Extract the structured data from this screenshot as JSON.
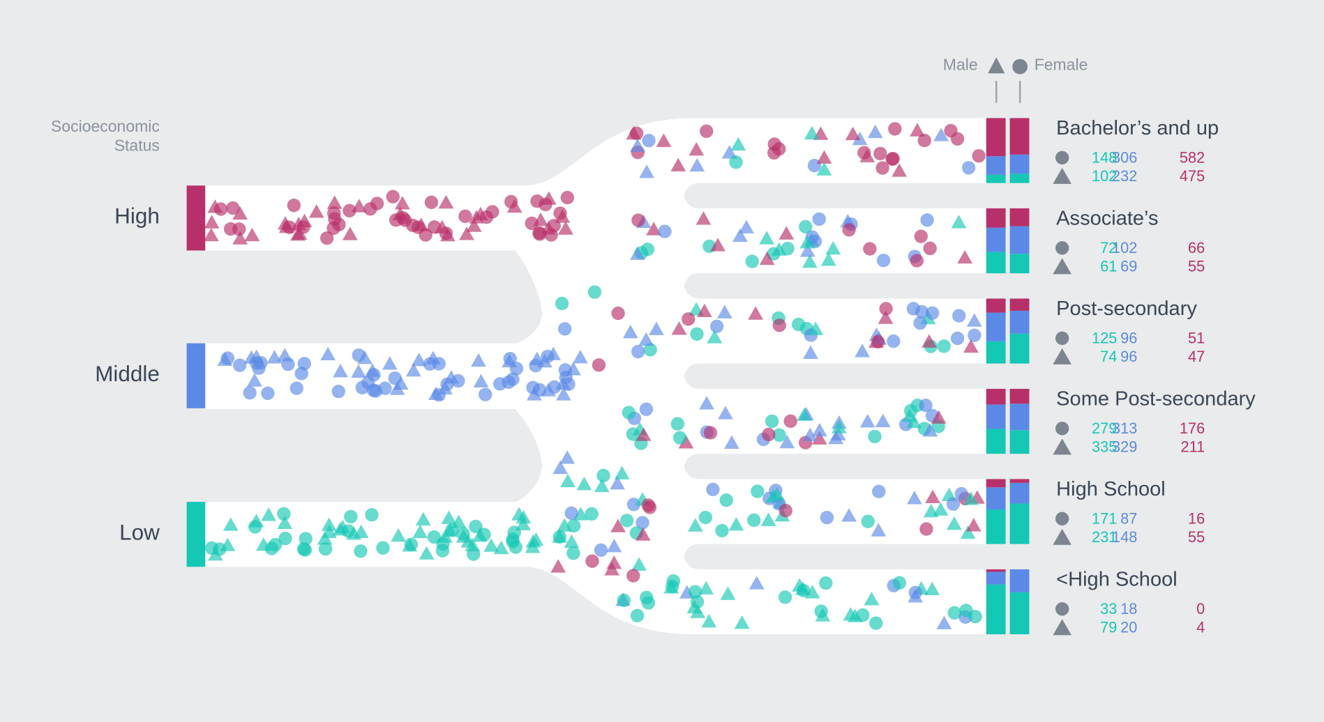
{
  "legend": {
    "male": "Male",
    "female": "Female"
  },
  "ses_title": [
    "Socioeconomic",
    "Status"
  ],
  "ses": [
    {
      "label": "High",
      "color": "#b8306a"
    },
    {
      "label": "Middle",
      "color": "#5b8ae6"
    },
    {
      "label": "Low",
      "color": "#14c8b4"
    }
  ],
  "education": [
    {
      "label": "Bachelor’s and up",
      "female": [
        148,
        306,
        582
      ],
      "male": [
        102,
        232,
        475
      ]
    },
    {
      "label": "Associate’s",
      "female": [
        72,
        102,
        66
      ],
      "male": [
        61,
        69,
        55
      ]
    },
    {
      "label": "Post-secondary",
      "female": [
        125,
        96,
        51
      ],
      "male": [
        74,
        96,
        47
      ]
    },
    {
      "label": "Some Post-secondary",
      "female": [
        279,
        313,
        176
      ],
      "male": [
        335,
        329,
        211
      ]
    },
    {
      "label": "High School",
      "female": [
        171,
        87,
        16
      ],
      "male": [
        231,
        148,
        55
      ]
    },
    {
      "label": "<High School",
      "female": [
        33,
        18,
        0
      ],
      "male": [
        79,
        20,
        4
      ]
    }
  ]
}
